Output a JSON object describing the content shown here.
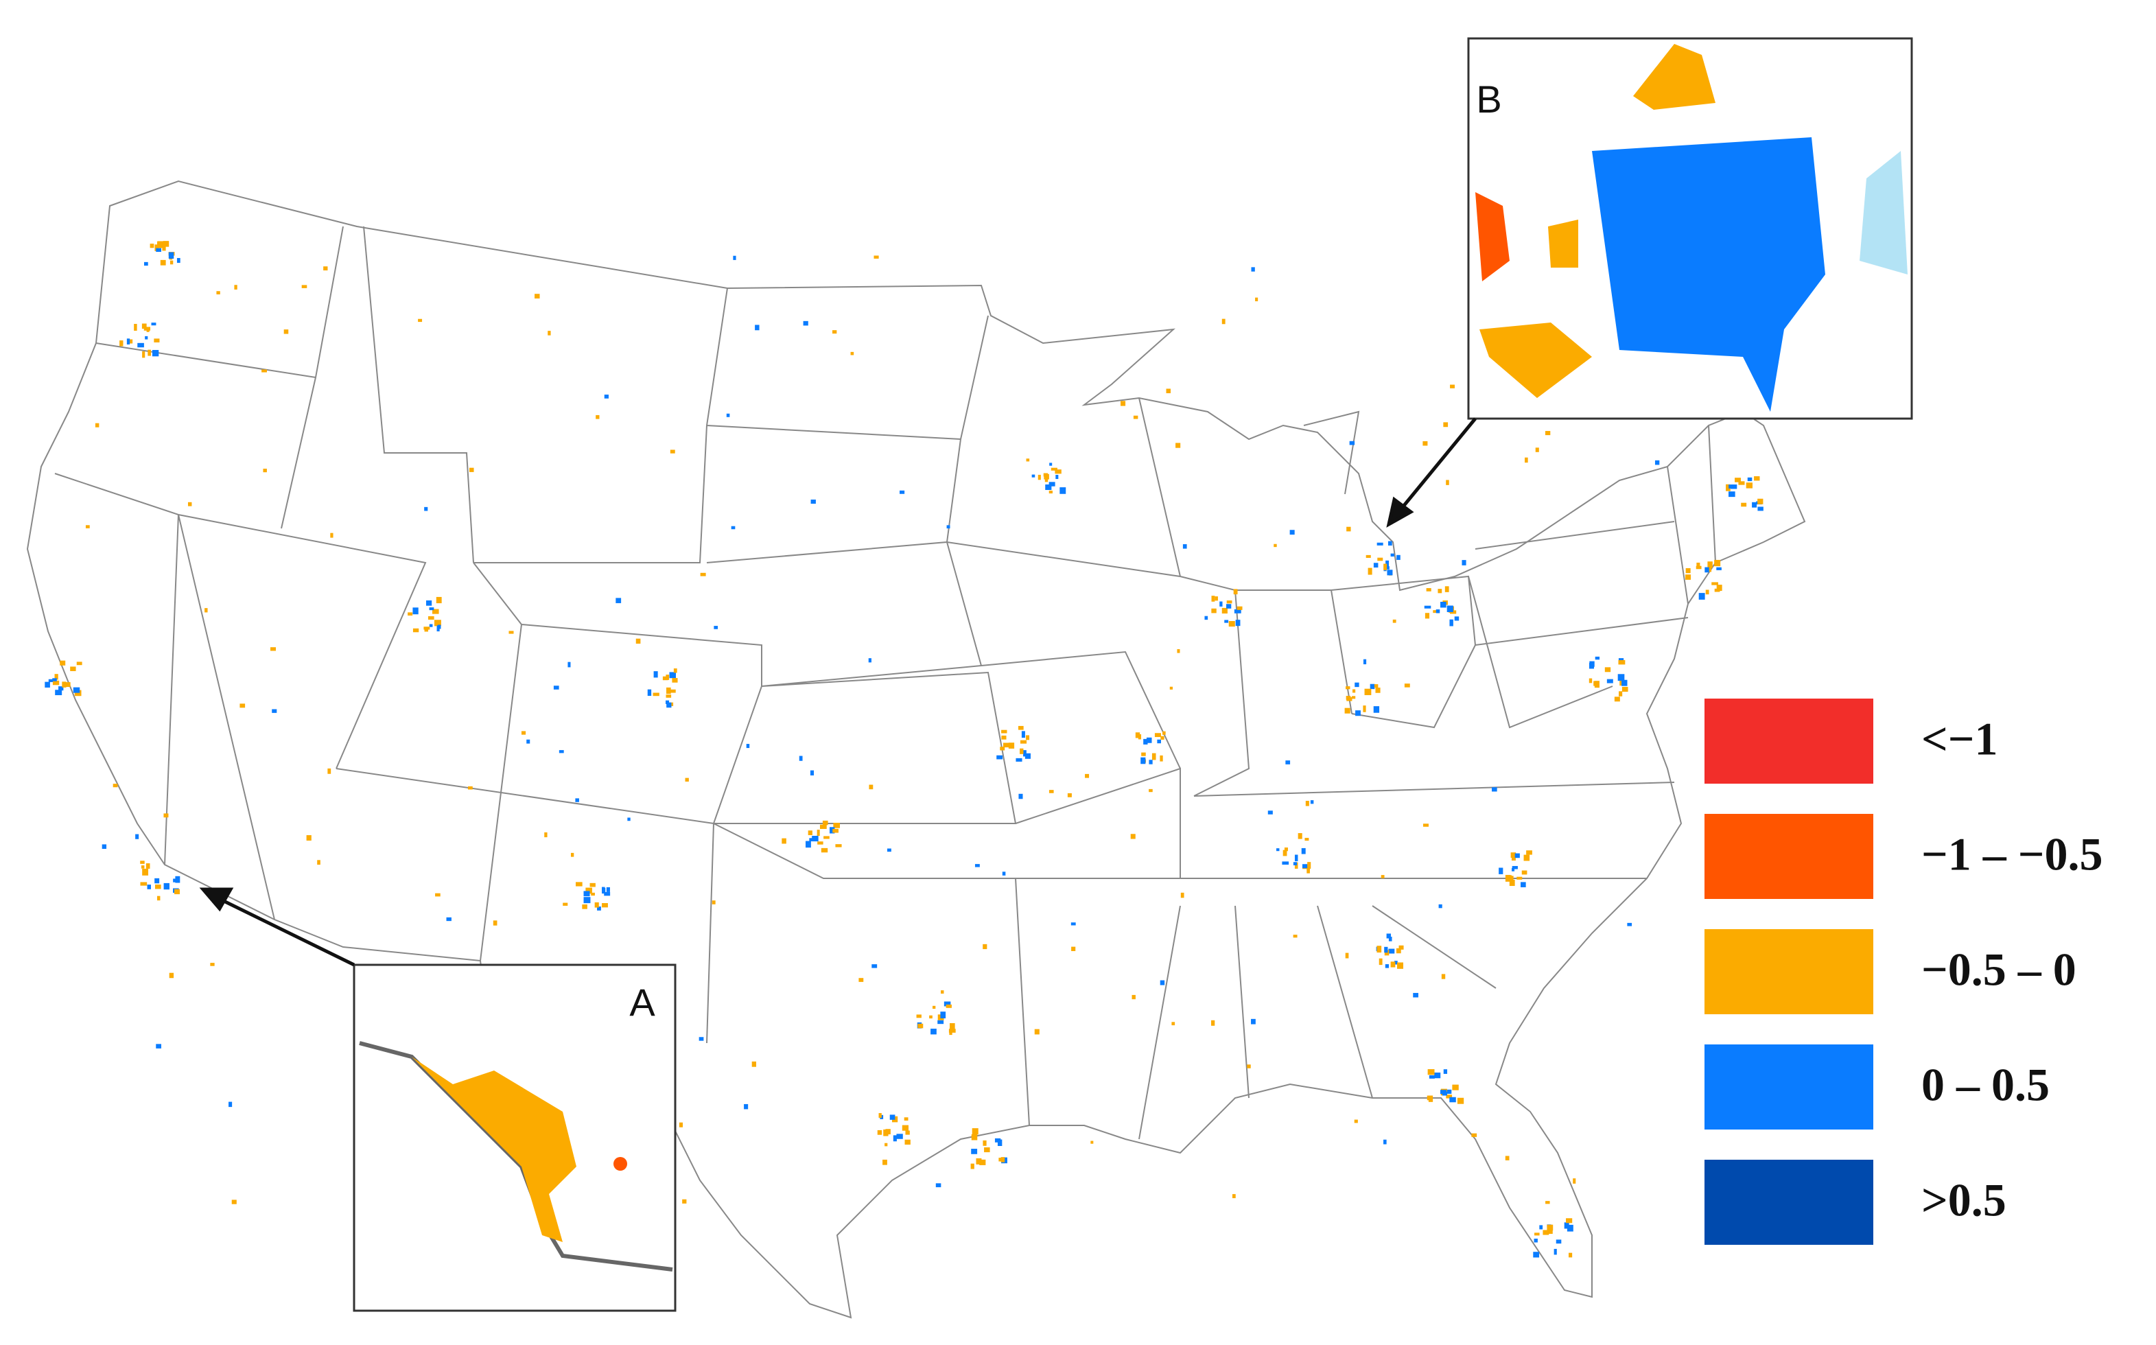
{
  "map": {
    "inset_a_label": "A",
    "inset_b_label": "B"
  },
  "legend": [
    {
      "label": "<−1",
      "color": "#f22e2a"
    },
    {
      "label": "−1 – −0.5",
      "color": "#ff5500"
    },
    {
      "label": "−0.5 – 0",
      "color": "#fbab00"
    },
    {
      "label": "0 – 0.5",
      "color": "#0a7cff"
    },
    {
      "label": ">0.5",
      "color": "#004aad"
    }
  ]
}
